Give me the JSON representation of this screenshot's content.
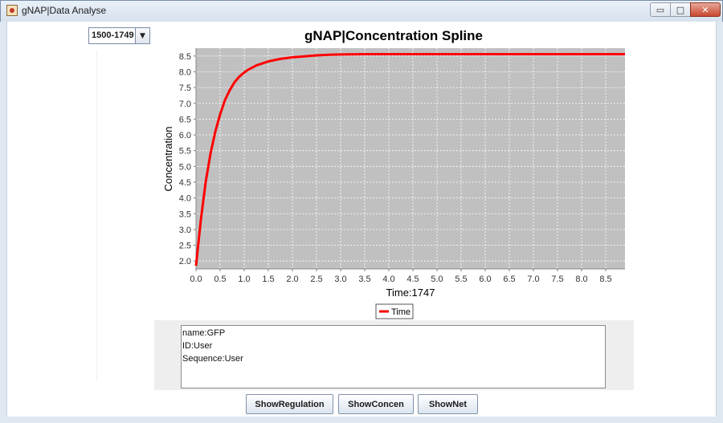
{
  "window": {
    "title": "gNAP|Data Analyse",
    "minimize_glyph": "▭",
    "maximize_glyph": "□",
    "close_glyph": "✕"
  },
  "range_select": {
    "value": "1500-1749",
    "arrow_glyph": "▼"
  },
  "chart_data": {
    "type": "line",
    "title": "gNAP|Concentration Spline",
    "xlabel": "Time:1747",
    "ylabel": "Concentration",
    "xlim": [
      0.0,
      8.9
    ],
    "ylim": [
      1.75,
      8.75
    ],
    "x_ticks": [
      "0.0",
      "0.5",
      "1.0",
      "1.5",
      "2.0",
      "2.5",
      "3.0",
      "3.5",
      "4.0",
      "4.5",
      "5.0",
      "5.5",
      "6.0",
      "6.5",
      "7.0",
      "7.5",
      "8.0",
      "8.5"
    ],
    "y_ticks": [
      "2.0",
      "2.5",
      "3.0",
      "3.5",
      "4.0",
      "4.5",
      "5.0",
      "5.5",
      "6.0",
      "6.5",
      "7.0",
      "7.5",
      "8.0",
      "8.5"
    ],
    "grid": true,
    "legend": "bottom-center",
    "series": [
      {
        "name": "Time",
        "color": "#ff0000",
        "x": [
          0.0,
          0.1,
          0.2,
          0.3,
          0.4,
          0.5,
          0.6,
          0.7,
          0.8,
          0.9,
          1.0,
          1.1,
          1.25,
          1.5,
          1.75,
          2.0,
          2.25,
          2.5,
          2.75,
          3.0,
          3.5,
          4.0,
          5.0,
          6.0,
          7.0,
          8.0,
          8.9
        ],
        "y": [
          1.85,
          3.3,
          4.5,
          5.4,
          6.1,
          6.65,
          7.1,
          7.42,
          7.67,
          7.85,
          7.98,
          8.08,
          8.2,
          8.33,
          8.41,
          8.46,
          8.49,
          8.52,
          8.54,
          8.55,
          8.56,
          8.56,
          8.56,
          8.56,
          8.56,
          8.56,
          8.56
        ]
      }
    ]
  },
  "info": {
    "name": "name:GFP",
    "id": "ID:User",
    "sequence": "Sequence:User"
  },
  "buttons": {
    "regulation": "ShowRegulation",
    "concen": "ShowConcen",
    "net": "ShowNet"
  },
  "colors": {
    "plot_background": "#c0c0c0",
    "series": "#ff0000"
  }
}
